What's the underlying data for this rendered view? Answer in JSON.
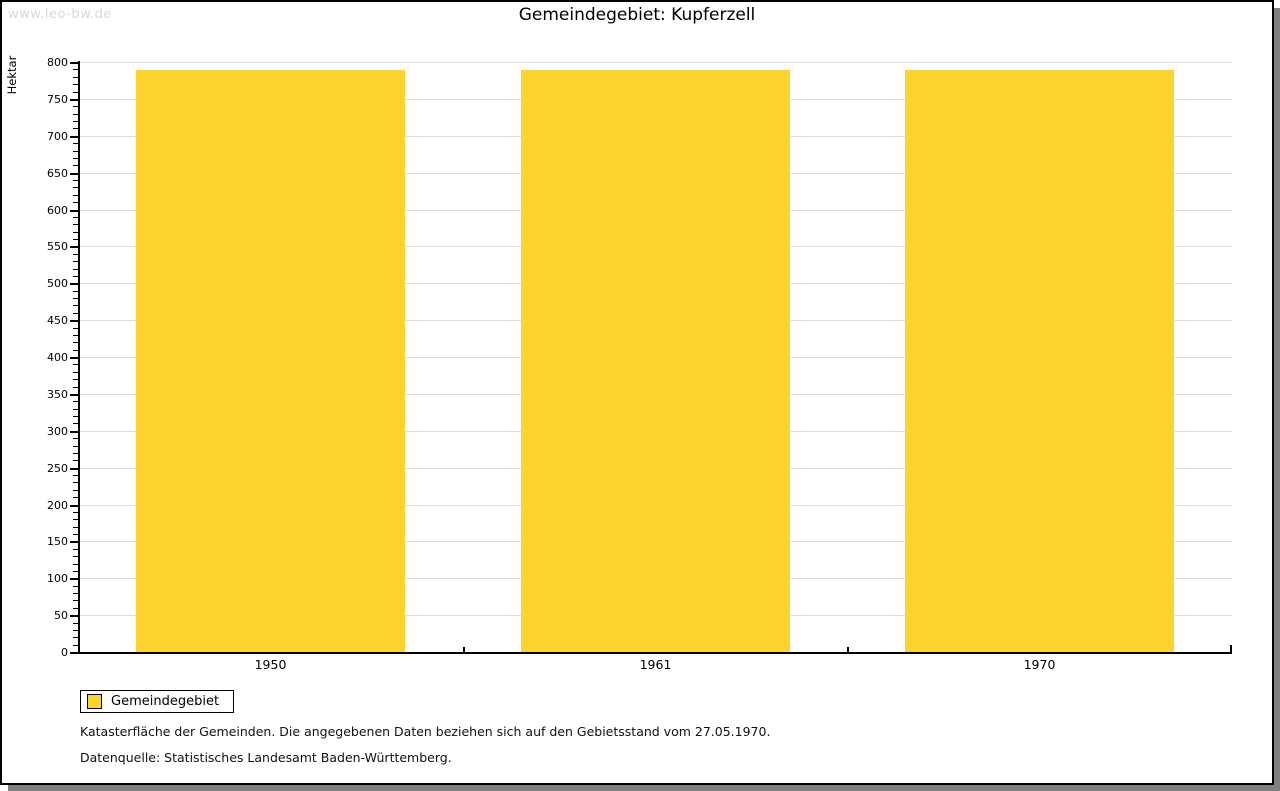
{
  "watermark": "www.leo-bw.de",
  "header": {
    "title": "Gemeindegebiet: Kupferzell"
  },
  "chart_data": {
    "type": "bar",
    "title": "Gemeindegebiet: Kupferzell",
    "categories": [
      "1950",
      "1961",
      "1970"
    ],
    "series": [
      {
        "name": "Gemeindegebiet",
        "values": [
          789,
          789,
          789
        ]
      }
    ],
    "xlabel": "",
    "ylabel": "Hektar",
    "ylim": [
      0,
      800
    ],
    "ytick_step": 50,
    "yminor_step": 10,
    "grid": true,
    "legend_position": "bottom-left",
    "bar_color": "#FDD32D"
  },
  "legend": {
    "items": [
      {
        "label": "Gemeindegebiet",
        "color": "#FDD32D"
      }
    ]
  },
  "footnotes": [
    "Katasterfläche der Gemeinden. Die angegebenen Daten beziehen sich auf den Gebietsstand vom 27.05.1970.",
    "Datenquelle: Statistisches Landesamt Baden-Württemberg."
  ],
  "colors": {
    "bar": "#FDD32D",
    "gridline": "#DCDCDC",
    "axis": "#000000",
    "watermark": "#D9D9D9",
    "shadow": "#7F7F7F",
    "background": "#FFFFFF"
  }
}
